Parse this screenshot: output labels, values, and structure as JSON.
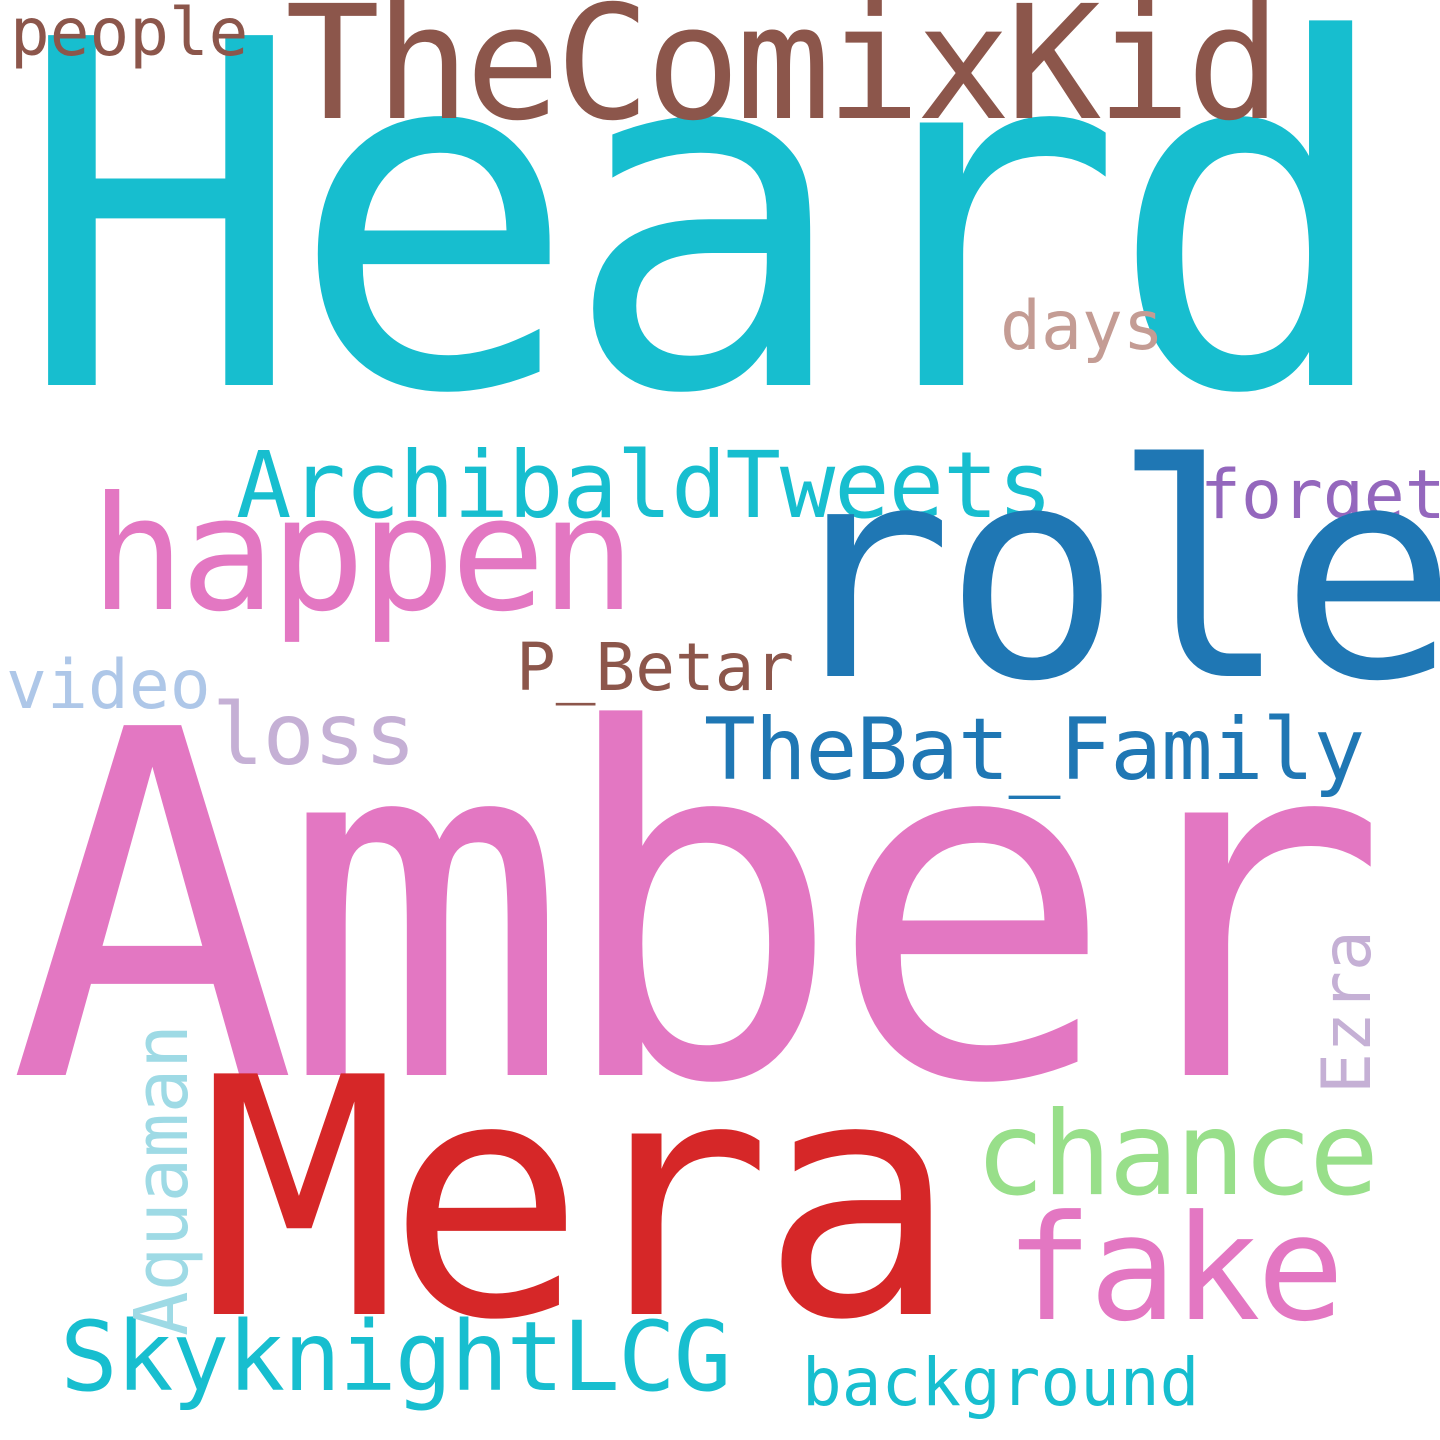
{
  "words": {
    "heard": {
      "text": "Heard",
      "color": "#17becf"
    },
    "amber": {
      "text": "Amber",
      "color": "#e377c2"
    },
    "mera": {
      "text": "Mera",
      "color": "#d62728"
    },
    "role": {
      "text": "role",
      "color": "#1f77b4"
    },
    "comix": {
      "text": "TheComixKid",
      "color": "#8c564b"
    },
    "happen": {
      "text": "happen",
      "color": "#e377c2"
    },
    "chance": {
      "text": "chance",
      "color": "#98df8a"
    },
    "fake": {
      "text": "fake",
      "color": "#e377c2"
    },
    "archibald": {
      "text": "ArchibaldTweets",
      "color": "#17becf"
    },
    "batfamily": {
      "text": "TheBat_Family",
      "color": "#1f77b4"
    },
    "skyknight": {
      "text": "SkyknightLCG",
      "color": "#17becf"
    },
    "loss": {
      "text": "loss",
      "color": "#c5b0d5"
    },
    "forget": {
      "text": "forget",
      "color": "#9467bd"
    },
    "days": {
      "text": "days",
      "color": "#c49c94"
    },
    "pbetar": {
      "text": "P_Betar",
      "color": "#8c564b"
    },
    "video": {
      "text": "video",
      "color": "#aec7e8"
    },
    "people": {
      "text": "people",
      "color": "#8c564b"
    },
    "background": {
      "text": "background",
      "color": "#17becf"
    },
    "aquaman": {
      "text": "Aquaman",
      "color": "#9edae5"
    },
    "ezra": {
      "text": "Ezra",
      "color": "#c5b0d5"
    }
  }
}
